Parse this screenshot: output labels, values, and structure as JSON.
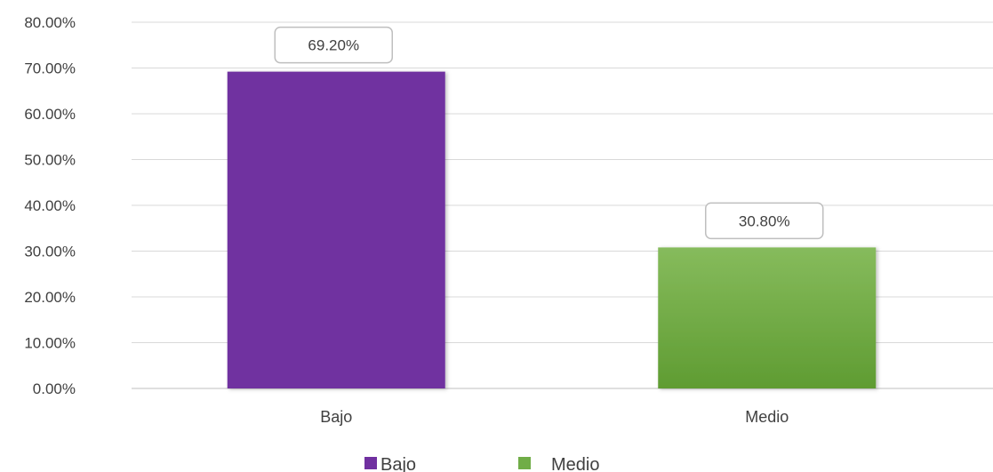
{
  "chart_data": {
    "type": "bar",
    "categories": [
      "Bajo",
      "Medio"
    ],
    "values": [
      69.2,
      30.8
    ],
    "data_labels": [
      "69.20%",
      "30.80%"
    ],
    "y_ticks": [
      "0.00%",
      "10.00%",
      "20.00%",
      "30.00%",
      "40.00%",
      "50.00%",
      "60.00%",
      "70.00%",
      "80.00%"
    ],
    "ylim": [
      0,
      80
    ],
    "grid": true,
    "legend_position": "bottom",
    "legend": [
      "Bajo",
      "Medio"
    ],
    "colors": {
      "Bajo": "#7030a0",
      "Medio": "#70ad47"
    }
  }
}
